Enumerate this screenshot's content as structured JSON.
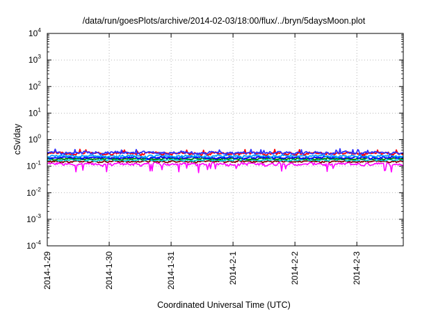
{
  "chart_data": {
    "type": "line",
    "title": "/data/run/goesPlots/archive/2014-02-03/18:00/flux/../bryn/5daysMoon.plot",
    "xlabel": "Coordinated Universal Time (UTC)",
    "ylabel": "cSv/day",
    "yscale": "log",
    "ylim_exp": [
      -4,
      4
    ],
    "y_ticks": [
      {
        "base": "10",
        "exp": "-4"
      },
      {
        "base": "10",
        "exp": "-3"
      },
      {
        "base": "10",
        "exp": "-2"
      },
      {
        "base": "10",
        "exp": "-1"
      },
      {
        "base": "10",
        "exp": "0"
      },
      {
        "base": "10",
        "exp": "1"
      },
      {
        "base": "10",
        "exp": "2"
      },
      {
        "base": "10",
        "exp": "3"
      },
      {
        "base": "10",
        "exp": "4"
      }
    ],
    "x_ticks": [
      "2014-1-29",
      "2014-1-30",
      "2014-1-31",
      "2014-2-1",
      "2014-2-2",
      "2014-2-3"
    ],
    "xlim": [
      "2014-01-29T00:00",
      "2014-02-03T18:00"
    ],
    "grid": true,
    "grid_style": "dotted",
    "series": [
      {
        "color": "#ff00ff",
        "level": 0.12,
        "noise": 0.09,
        "dips": true
      },
      {
        "color": "#800000",
        "level": 0.15,
        "noise": 0.05
      },
      {
        "color": "#00d0d0",
        "level": 0.17,
        "noise": 0.05
      },
      {
        "color": "#008000",
        "level": 0.19,
        "noise": 0.05
      },
      {
        "color": "#0000ff",
        "level": 0.21,
        "noise": 0.06
      },
      {
        "color": "#00a0ff",
        "level": 0.24,
        "noise": 0.07
      },
      {
        "color": "#ff0000",
        "level": 0.3,
        "noise": 0.08
      },
      {
        "color": "#3030ff",
        "level": 0.32,
        "noise": 0.08
      }
    ]
  }
}
